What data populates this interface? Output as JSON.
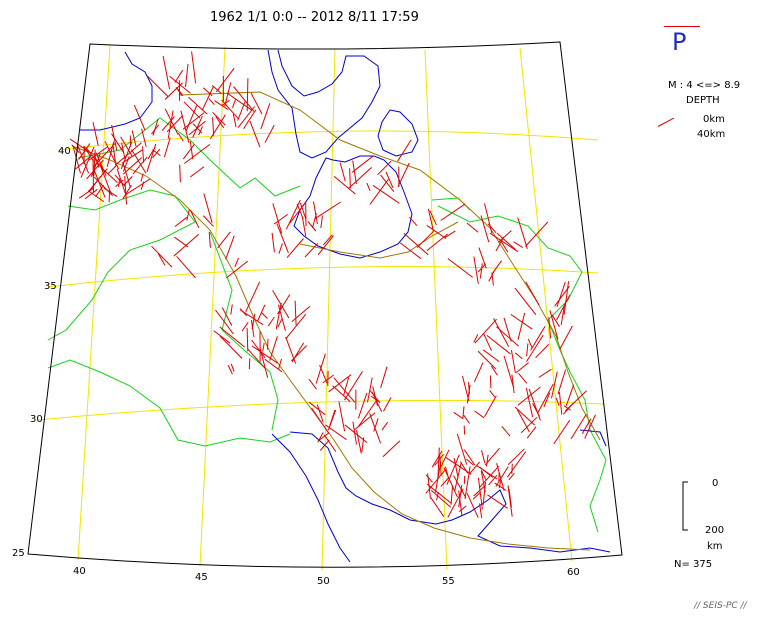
{
  "header": {
    "title": "1962 1/1 0:0 -- 2012 8/11 17:59"
  },
  "legend": {
    "phase": "P",
    "magnitude": "M : 4 <=> 8.9",
    "depth_title": "DEPTH",
    "depth_min": "0km",
    "depth_max": "40km",
    "colors": {
      "event": "#e00000",
      "grid": "#f2e400",
      "border": "#19d219",
      "coast": "#0000d0",
      "fault": "#a07800"
    }
  },
  "scale": {
    "top": "0",
    "bottom": "200",
    "unit": "km"
  },
  "summary": {
    "count": "N= 375"
  },
  "credit": "// SEIS-PC //",
  "axes": {
    "lat_labels": [
      "40",
      "35",
      "30",
      "25"
    ],
    "lon_labels": [
      "40",
      "45",
      "50",
      "55",
      "60"
    ]
  }
}
